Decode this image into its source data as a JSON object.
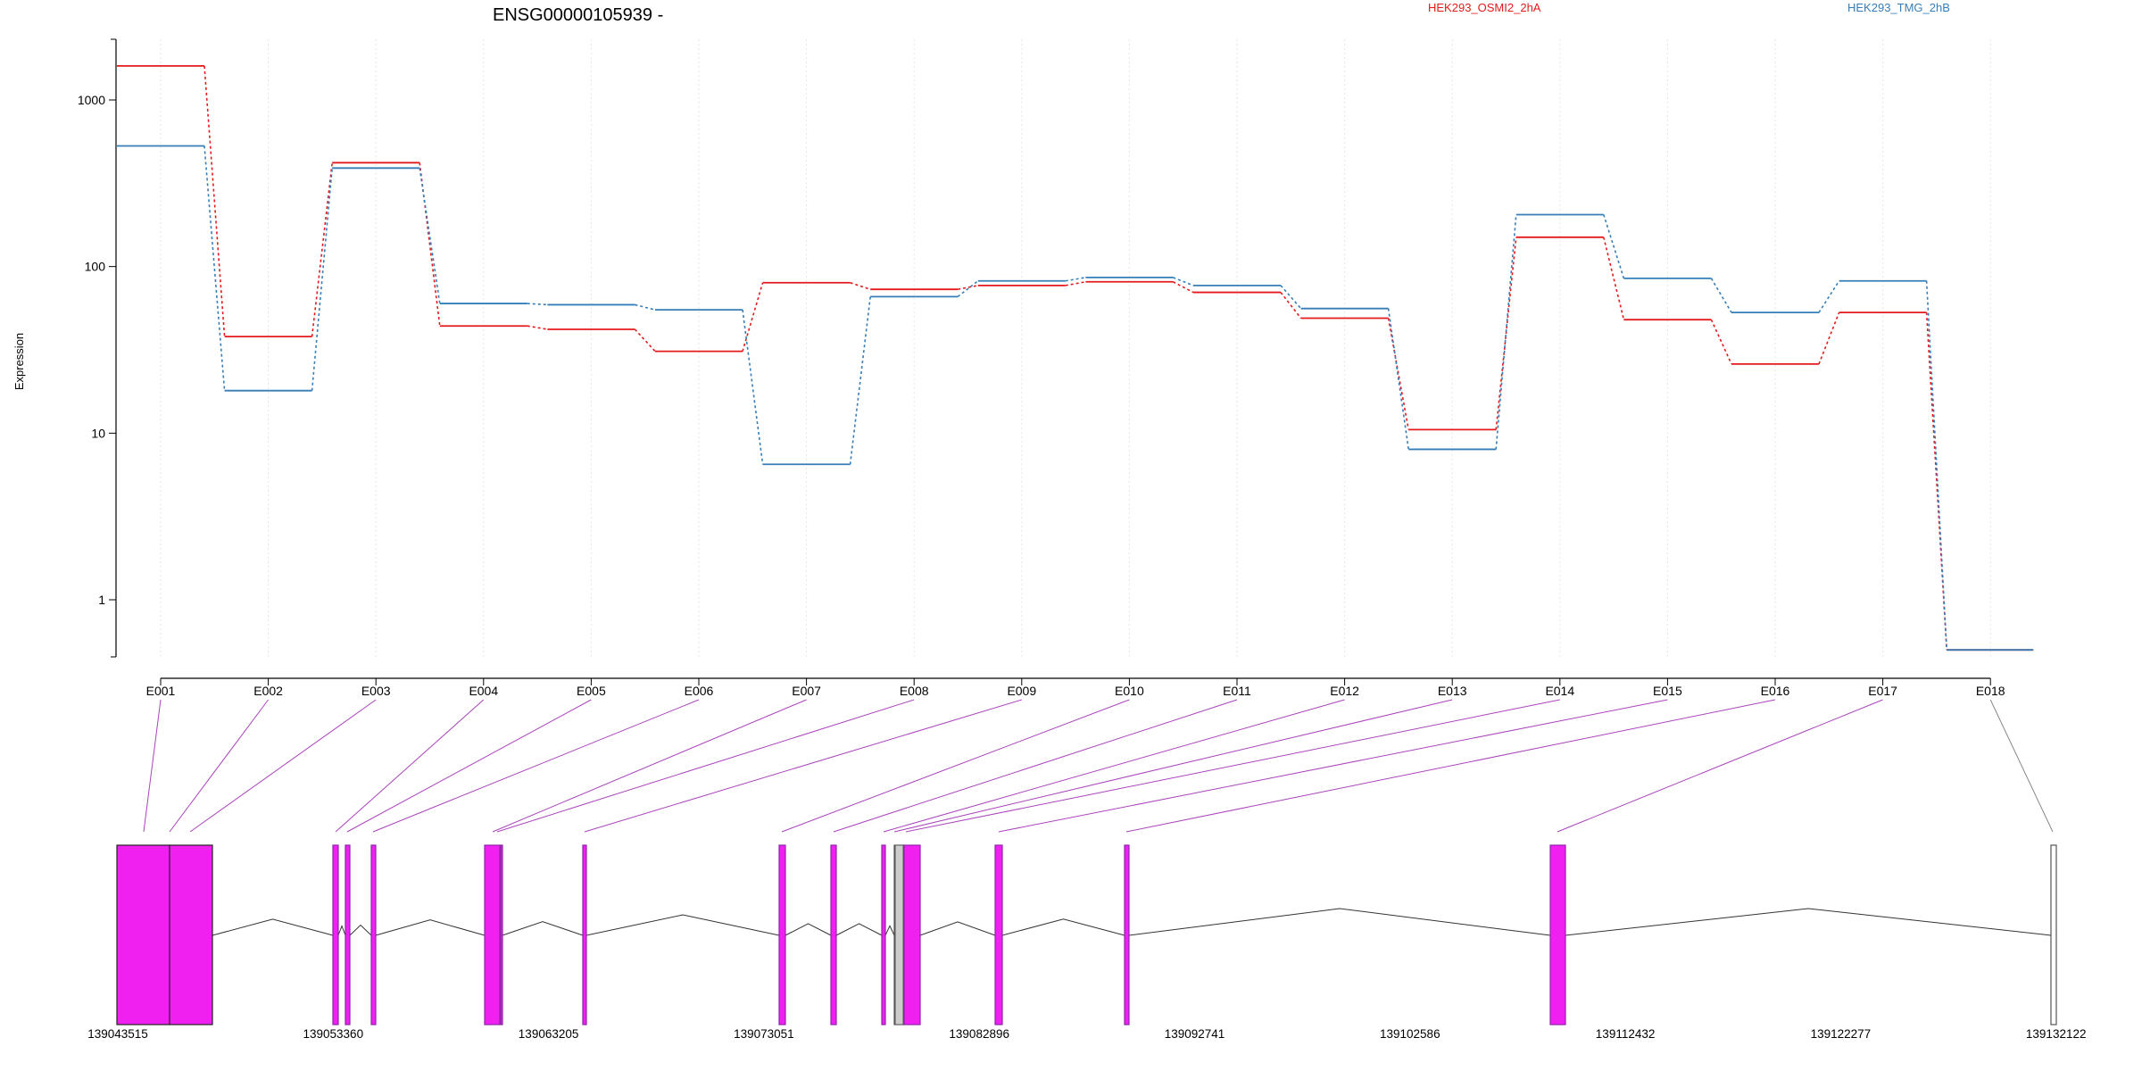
{
  "chart_data": {
    "type": "line",
    "title": "ENSG00000105939 -",
    "xlabel": "",
    "ylabel": "Expression",
    "yscale": "log",
    "ylim": [
      0.45,
      2100
    ],
    "yticks": [
      1,
      10,
      100,
      1000
    ],
    "ytick_labels": [
      "1",
      "10",
      "100",
      "1000"
    ],
    "grid": "vertical dotted",
    "legend_position": "top",
    "categories": [
      "E001",
      "E002",
      "E003",
      "E004",
      "E005",
      "E006",
      "E007",
      "E008",
      "E009",
      "E010",
      "E011",
      "E012",
      "E013",
      "E014",
      "E015",
      "E016",
      "E017",
      "E018"
    ],
    "series": [
      {
        "name": "HEK293_OSMI2_2hA",
        "color": "#e41a1c",
        "values": [
          1600,
          38,
          420,
          44,
          42,
          31,
          80,
          73,
          77,
          81,
          70,
          49,
          10.5,
          150,
          48,
          26,
          53,
          0.5
        ]
      },
      {
        "name": "HEK293_TMG_2hB",
        "color": "#377eb8",
        "values": [
          530,
          18,
          390,
          60,
          59,
          55,
          6.5,
          66,
          82,
          86,
          77,
          56,
          8,
          205,
          85,
          53,
          82,
          0.5
        ]
      }
    ],
    "gene_model": {
      "coordinate_labels": [
        "139043515",
        "139053360",
        "139063205",
        "139073051",
        "139082896",
        "139092741",
        "139102586",
        "139112432",
        "139122277",
        "139132122"
      ],
      "exon_color": "#f020f0",
      "exon_border": "#8e24aa",
      "noncoding_color": "#cccccc",
      "connector_color": "#aa44bb"
    }
  }
}
